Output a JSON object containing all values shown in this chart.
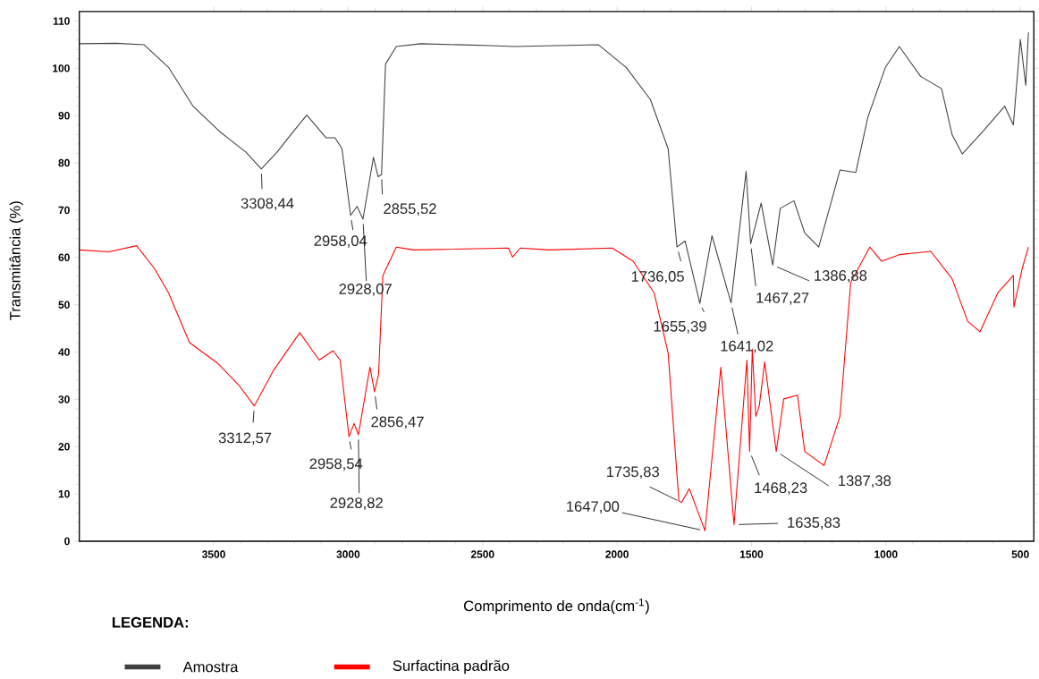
{
  "chart_data": {
    "type": "line",
    "xlabel": "Comprimento  de onda(cm$^{-1}$)",
    "ylabel": "Transmitância (%)",
    "legend_title": "LEGENDA:",
    "legend": "bottom",
    "xlim": [
      4000,
      450
    ],
    "ylim": [
      0,
      112
    ],
    "xticks": [
      3500,
      3000,
      2500,
      2000,
      1500,
      1000,
      500
    ],
    "yticks": [
      0,
      10,
      20,
      30,
      40,
      50,
      60,
      70,
      80,
      90,
      100,
      110
    ],
    "series": [
      {
        "name": "Amostra",
        "color": "#404040",
        "x": [
          4000,
          3864,
          3760,
          3668,
          3577,
          3473,
          3381,
          3323,
          3264,
          3213,
          3154,
          3082,
          3049,
          3023,
          2991,
          2967,
          2945,
          2906,
          2889,
          2876,
          2861,
          2821,
          2730,
          2469,
          2383,
          2070,
          1966,
          1876,
          1810,
          1777,
          1747,
          1692,
          1647,
          1576,
          1520,
          1503,
          1464,
          1421,
          1393,
          1342,
          1302,
          1250,
          1210,
          1171,
          1112,
          1067,
          1002,
          950,
          871,
          793,
          754,
          716,
          637,
          558,
          526,
          500,
          480,
          470
        ],
        "values": [
          105.2,
          105.3,
          105,
          100.2,
          92,
          86.4,
          82.3,
          78.7,
          82.3,
          86,
          90.1,
          85.3,
          85.3,
          83,
          68.9,
          70.8,
          68.1,
          81.2,
          77.1,
          77.5,
          100.9,
          104.6,
          105.2,
          104.8,
          104.6,
          105,
          100.2,
          93.4,
          83,
          62.2,
          63.5,
          50.3,
          64.6,
          50.4,
          78.2,
          62.9,
          71.5,
          58.4,
          70.4,
          72,
          65.2,
          62.2,
          70.4,
          78.5,
          78,
          89.7,
          100.2,
          104.6,
          98.3,
          95.7,
          86,
          81.9,
          86.8,
          92,
          88,
          106.1,
          96.4,
          107.6
        ]
      },
      {
        "name": "Surfactina padrão",
        "color": "#ff0000",
        "x": [
          4000,
          3890,
          3787,
          3721,
          3668,
          3590,
          3487,
          3408,
          3349,
          3278,
          3180,
          3108,
          3056,
          3030,
          2997,
          2978,
          2962,
          2919,
          2902,
          2887,
          2871,
          2821,
          2756,
          2404,
          2389,
          2360,
          2253,
          2018,
          1940,
          1862,
          1810,
          1770,
          1760,
          1731,
          1673,
          1614,
          1565,
          1517,
          1507,
          1497,
          1484,
          1471,
          1451,
          1408,
          1380,
          1329,
          1302,
          1230,
          1171,
          1131,
          1060,
          1016,
          950,
          833,
          754,
          696,
          650,
          584,
          526,
          524,
          493,
          470
        ],
        "values": [
          61.6,
          61.2,
          62.5,
          57.7,
          52.5,
          42,
          37.7,
          33.1,
          28.6,
          36.1,
          44.1,
          38.3,
          40.3,
          38.3,
          22.1,
          24.9,
          22.5,
          36.8,
          31.6,
          35.3,
          56.2,
          62.2,
          61.6,
          62,
          60.1,
          62,
          61.6,
          62,
          59.2,
          52.5,
          39.8,
          8.5,
          8.2,
          11.1,
          2.2,
          36.8,
          3.5,
          38.3,
          19,
          40.6,
          26.4,
          28.6,
          37.9,
          19,
          30.1,
          30.9,
          19,
          16,
          26.4,
          54.7,
          62.2,
          59.2,
          60.6,
          61.3,
          55.5,
          46.5,
          44.3,
          52.5,
          56.2,
          49.5,
          57.7,
          62.2
        ]
      }
    ],
    "annotations": [
      {
        "text": "3308,44",
        "x": 3323,
        "y": 78.7
      },
      {
        "text": "2958,04",
        "x": 2991,
        "y": 68.9
      },
      {
        "text": "2928,07",
        "x": 2945,
        "y": 68.1
      },
      {
        "text": "2855,52",
        "x": 2876,
        "y": 77.5
      },
      {
        "text": "1736,05",
        "x": 1777,
        "y": 62.2
      },
      {
        "text": "1655,39",
        "x": 1692,
        "y": 50.3
      },
      {
        "text": "1641,02",
        "x": 1576,
        "y": 50.4
      },
      {
        "text": "1467,27",
        "x": 1503,
        "y": 62.9
      },
      {
        "text": "1386,88",
        "x": 1421,
        "y": 58.4
      },
      {
        "text": "3312,57",
        "x": 3349,
        "y": 28.6
      },
      {
        "text": "2958,54",
        "x": 2997,
        "y": 22.1
      },
      {
        "text": "2928,82",
        "x": 2962,
        "y": 22.5
      },
      {
        "text": "2856,47",
        "x": 2902,
        "y": 31.6
      },
      {
        "text": "1735,83",
        "x": 1760,
        "y": 8.2
      },
      {
        "text": "1647,00",
        "x": 1673,
        "y": 2.2
      },
      {
        "text": "1635,83",
        "x": 1565,
        "y": 3.5
      },
      {
        "text": "1468,23",
        "x": 1507,
        "y": 19
      },
      {
        "text": "1387,38",
        "x": 1408,
        "y": 19
      }
    ]
  }
}
